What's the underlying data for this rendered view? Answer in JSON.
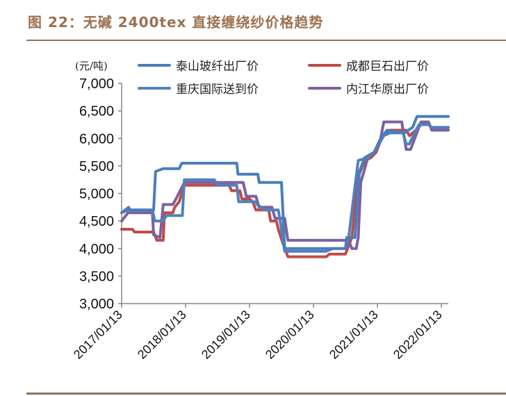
{
  "title": "图 22：无碱 2400tex 直接缠绕纱价格趋势",
  "unit_label": "(元/吨)",
  "chart_data": {
    "type": "line",
    "title": "无碱2400tex直接缠绕纱价格趋势",
    "xlabel": "",
    "ylabel": "(元/吨)",
    "ylim": [
      3000,
      7000
    ],
    "yticks": [
      "3,000",
      "3,500",
      "4,000",
      "4,500",
      "5,000",
      "5,500",
      "6,000",
      "6,500",
      "7,000"
    ],
    "ytick_values": [
      3000,
      3500,
      4000,
      4500,
      5000,
      5500,
      6000,
      6500,
      7000
    ],
    "xticks": [
      "2017/01/13",
      "2018/01/13",
      "2019/01/13",
      "2020/01/13",
      "2021/01/13",
      "2022/01/13"
    ],
    "x_unit": "years since 2017/01/13",
    "xlim": [
      0,
      5.11
    ],
    "grid": false,
    "legend_position": "top",
    "series": [
      {
        "name": "泰山玻纤出厂价",
        "color": "#4a7ebb",
        "points": [
          [
            0,
            4650
          ],
          [
            0.11,
            4750
          ],
          [
            0.13,
            4700
          ],
          [
            0.5,
            4700
          ],
          [
            0.53,
            5400
          ],
          [
            0.65,
            5450
          ],
          [
            0.9,
            5450
          ],
          [
            0.94,
            5550
          ],
          [
            1.8,
            5550
          ],
          [
            1.82,
            5350
          ],
          [
            2.13,
            5350
          ],
          [
            2.15,
            5200
          ],
          [
            2.5,
            5200
          ],
          [
            2.55,
            4000
          ],
          [
            3.5,
            4000
          ],
          [
            3.52,
            4200
          ],
          [
            3.65,
            4200
          ],
          [
            3.72,
            5400
          ],
          [
            3.8,
            5650
          ],
          [
            3.95,
            5750
          ],
          [
            4.05,
            6000
          ],
          [
            4.15,
            6150
          ],
          [
            4.42,
            6100
          ],
          [
            4.55,
            6200
          ],
          [
            4.62,
            6400
          ],
          [
            5.11,
            6400
          ]
        ]
      },
      {
        "name": "成都巨石出厂价",
        "color": "#be4b48",
        "points": [
          [
            0,
            4350
          ],
          [
            0.17,
            4350
          ],
          [
            0.2,
            4300
          ],
          [
            0.5,
            4300
          ],
          [
            0.55,
            4150
          ],
          [
            0.65,
            4150
          ],
          [
            0.67,
            4650
          ],
          [
            0.8,
            4650
          ],
          [
            0.83,
            4750
          ],
          [
            0.9,
            4850
          ],
          [
            0.98,
            5150
          ],
          [
            1.68,
            5150
          ],
          [
            1.72,
            5050
          ],
          [
            1.85,
            5050
          ],
          [
            1.88,
            4900
          ],
          [
            2.0,
            4900
          ],
          [
            2.05,
            4850
          ],
          [
            2.1,
            4700
          ],
          [
            2.3,
            4700
          ],
          [
            2.33,
            4500
          ],
          [
            2.42,
            4500
          ],
          [
            2.45,
            4350
          ],
          [
            2.52,
            4100
          ],
          [
            2.6,
            3850
          ],
          [
            3.2,
            3850
          ],
          [
            3.25,
            3900
          ],
          [
            3.5,
            3900
          ],
          [
            3.6,
            4200
          ],
          [
            3.7,
            5300
          ],
          [
            3.8,
            5600
          ],
          [
            3.9,
            5650
          ],
          [
            3.98,
            5750
          ],
          [
            4.08,
            6050
          ],
          [
            4.2,
            6150
          ],
          [
            4.45,
            6150
          ],
          [
            4.5,
            6050
          ],
          [
            4.6,
            6150
          ],
          [
            4.68,
            6250
          ],
          [
            4.8,
            6250
          ],
          [
            4.85,
            6200
          ],
          [
            5.11,
            6200
          ]
        ]
      },
      {
        "name": "重庆国际送到价",
        "color": "#4f81bd",
        "points": [
          [
            0,
            4650
          ],
          [
            0.1,
            4700
          ],
          [
            0.48,
            4700
          ],
          [
            0.52,
            4500
          ],
          [
            0.65,
            4500
          ],
          [
            0.7,
            4600
          ],
          [
            0.95,
            4600
          ],
          [
            0.98,
            5250
          ],
          [
            1.45,
            5250
          ],
          [
            1.5,
            5150
          ],
          [
            1.8,
            5150
          ],
          [
            1.83,
            4850
          ],
          [
            2.1,
            4850
          ],
          [
            2.12,
            4800
          ],
          [
            2.25,
            4700
          ],
          [
            2.45,
            4700
          ],
          [
            2.5,
            4350
          ],
          [
            2.55,
            3950
          ],
          [
            3.2,
            3950
          ],
          [
            3.3,
            4000
          ],
          [
            3.5,
            4000
          ],
          [
            3.55,
            4200
          ],
          [
            3.7,
            5600
          ],
          [
            3.85,
            5650
          ],
          [
            3.95,
            5750
          ],
          [
            4.1,
            6050
          ],
          [
            4.2,
            6100
          ],
          [
            4.4,
            6100
          ],
          [
            4.45,
            5900
          ],
          [
            4.5,
            5900
          ],
          [
            4.58,
            6100
          ],
          [
            4.65,
            6250
          ],
          [
            4.8,
            6250
          ],
          [
            4.85,
            6200
          ],
          [
            5.11,
            6200
          ]
        ]
      },
      {
        "name": "内江华原出厂价",
        "color": "#7d60a0",
        "points": [
          [
            0,
            4500
          ],
          [
            0.1,
            4650
          ],
          [
            0.48,
            4650
          ],
          [
            0.5,
            4250
          ],
          [
            0.6,
            4200
          ],
          [
            0.65,
            4800
          ],
          [
            0.8,
            4800
          ],
          [
            0.85,
            4900
          ],
          [
            0.98,
            5200
          ],
          [
            1.65,
            5200
          ],
          [
            1.72,
            5200
          ],
          [
            1.9,
            5200
          ],
          [
            1.95,
            4950
          ],
          [
            2.1,
            4950
          ],
          [
            2.15,
            4750
          ],
          [
            2.35,
            4750
          ],
          [
            2.4,
            4550
          ],
          [
            2.55,
            4550
          ],
          [
            2.6,
            4150
          ],
          [
            3.55,
            4150
          ],
          [
            3.6,
            4000
          ],
          [
            3.67,
            4000
          ],
          [
            3.7,
            4200
          ],
          [
            3.74,
            5200
          ],
          [
            3.85,
            5650
          ],
          [
            3.95,
            5750
          ],
          [
            4.05,
            6000
          ],
          [
            4.1,
            6300
          ],
          [
            4.38,
            6300
          ],
          [
            4.45,
            5800
          ],
          [
            4.52,
            5800
          ],
          [
            4.6,
            6050
          ],
          [
            4.68,
            6300
          ],
          [
            4.8,
            6300
          ],
          [
            4.85,
            6150
          ],
          [
            5.11,
            6150
          ]
        ]
      }
    ]
  },
  "legend": [
    {
      "label": "泰山玻纤出厂价",
      "color": "#4a7ebb"
    },
    {
      "label": "成都巨石出厂价",
      "color": "#be4b48"
    },
    {
      "label": "重庆国际送到价",
      "color": "#4f81bd"
    },
    {
      "label": "内江华原出厂价",
      "color": "#7d60a0"
    }
  ]
}
